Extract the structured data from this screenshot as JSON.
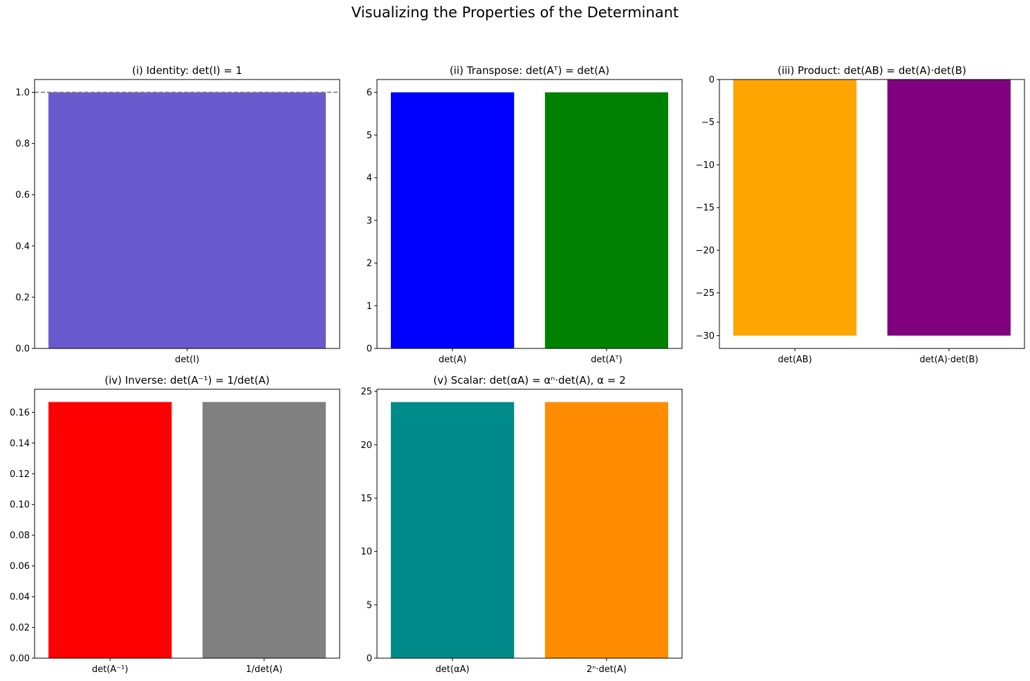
{
  "title": "Visualizing the Properties of the Determinant",
  "chart_data": [
    {
      "type": "bar",
      "title": "(i) Identity: det(I) = 1",
      "categories": [
        "det(I)"
      ],
      "values": [
        1.0
      ],
      "colors": [
        "#6a5acd"
      ],
      "ylim": [
        0,
        1.05
      ],
      "yticks": [
        0.0,
        0.2,
        0.4,
        0.6,
        0.8,
        1.0
      ],
      "ytick_labels": [
        "0.0",
        "0.2",
        "0.4",
        "0.6",
        "0.8",
        "1.0"
      ],
      "reference_line": {
        "y": 1.0,
        "style": "dashed",
        "color": "#808080"
      },
      "grid": false
    },
    {
      "type": "bar",
      "title": "(ii) Transpose: det(Aᵀ) = det(A)",
      "categories": [
        "det(A)",
        "det(Aᵀ)"
      ],
      "values": [
        6.0,
        6.0
      ],
      "colors": [
        "#0000ff",
        "#008000"
      ],
      "ylim": [
        0,
        6.3
      ],
      "yticks": [
        0,
        1,
        2,
        3,
        4,
        5,
        6
      ],
      "ytick_labels": [
        "0",
        "1",
        "2",
        "3",
        "4",
        "5",
        "6"
      ],
      "grid": false
    },
    {
      "type": "bar",
      "title": "(iii) Product: det(AB) = det(A)·det(B)",
      "categories": [
        "det(AB)",
        "det(A)·det(B)"
      ],
      "values": [
        -30.0,
        -30.0
      ],
      "colors": [
        "#ffa500",
        "#800080"
      ],
      "ylim": [
        -31.5,
        0
      ],
      "yticks": [
        0,
        -5,
        -10,
        -15,
        -20,
        -25,
        -30
      ],
      "ytick_labels": [
        "0",
        "−5",
        "−10",
        "−15",
        "−20",
        "−25",
        "−30"
      ],
      "grid": false
    },
    {
      "type": "bar",
      "title": "(iv) Inverse: det(A⁻¹) = 1/det(A)",
      "categories": [
        "det(A⁻¹)",
        "1/det(A)"
      ],
      "values": [
        0.1667,
        0.1667
      ],
      "colors": [
        "#ff0000",
        "#808080"
      ],
      "ylim": [
        0,
        0.175
      ],
      "yticks": [
        0.0,
        0.02,
        0.04,
        0.06,
        0.08,
        0.1,
        0.12,
        0.14,
        0.16
      ],
      "ytick_labels": [
        "0.00",
        "0.02",
        "0.04",
        "0.06",
        "0.08",
        "0.10",
        "0.12",
        "0.14",
        "0.16"
      ],
      "grid": false
    },
    {
      "type": "bar",
      "title": "(v) Scalar: det(αA) = αⁿ·det(A), α = 2",
      "categories": [
        "det(αA)",
        "2ⁿ·det(A)"
      ],
      "values": [
        24.0,
        24.0
      ],
      "colors": [
        "#008b8b",
        "#ff8c00"
      ],
      "ylim": [
        0,
        25.2
      ],
      "yticks": [
        0,
        5,
        10,
        15,
        20,
        25
      ],
      "ytick_labels": [
        "0",
        "5",
        "10",
        "15",
        "20",
        "25"
      ],
      "grid": false
    }
  ]
}
